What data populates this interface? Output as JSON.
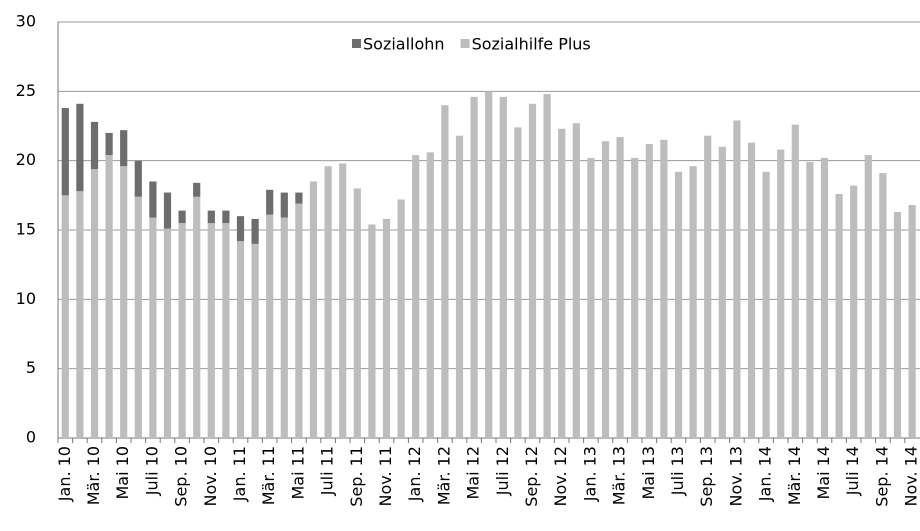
{
  "chart_data": {
    "type": "stacked_bar",
    "categories": [
      "Jan. 10",
      null,
      "Mär. 10",
      null,
      "Mai 10",
      null,
      "Juli 10",
      null,
      "Sep. 10",
      null,
      "Nov. 10",
      null,
      "Jan. 11",
      null,
      "Mär. 11",
      null,
      "Mai 11",
      null,
      "Juli 11",
      null,
      "Sep. 11",
      null,
      "Nov. 11",
      null,
      "Jan. 12",
      null,
      "Mär. 12",
      null,
      "Mai 12",
      null,
      "Juli 12",
      null,
      "Sep. 12",
      null,
      "Nov. 12",
      null,
      "Jan. 13",
      null,
      "Mär. 13",
      null,
      "Mai 13",
      null,
      "Juli 13",
      null,
      "Sep. 13",
      null,
      "Nov. 13",
      null,
      "Jan. 14",
      null,
      "Mär. 14",
      null,
      "Mai 14",
      null,
      "Juli 14",
      null,
      "Sep. 14",
      null,
      "Nov. 14"
    ],
    "series": [
      {
        "name": "Soziallohn",
        "color": "#6d6d6d",
        "values": [
          6.3,
          6.3,
          3.4,
          1.6,
          2.6,
          2.6,
          2.6,
          2.6,
          0.9,
          1.0,
          0.9,
          0.9,
          1.8,
          1.8,
          1.8,
          1.8,
          0.8,
          0,
          0,
          0,
          0,
          0,
          0,
          0,
          0,
          0,
          0,
          0,
          0,
          0,
          0,
          0,
          0,
          0,
          0,
          0,
          0,
          0,
          0,
          0,
          0,
          0,
          0,
          0,
          0,
          0,
          0,
          0,
          0,
          0,
          0,
          0,
          0,
          0,
          0,
          0,
          0,
          0,
          0
        ]
      },
      {
        "name": "Sozialhilfe Plus",
        "color": "#bdbdbd",
        "values": [
          17.5,
          17.8,
          19.4,
          20.4,
          19.6,
          17.4,
          15.9,
          15.1,
          15.5,
          17.4,
          15.5,
          15.5,
          14.2,
          14.0,
          16.1,
          15.9,
          16.9,
          18.5,
          19.6,
          19.8,
          18.0,
          15.4,
          15.8,
          17.2,
          20.4,
          20.6,
          24.0,
          21.8,
          24.6,
          25.0,
          24.6,
          22.4,
          24.1,
          24.8,
          22.3,
          22.7,
          20.2,
          21.4,
          21.7,
          20.2,
          21.2,
          21.5,
          19.2,
          19.6,
          21.8,
          21.0,
          22.9,
          21.3,
          19.2,
          20.8,
          22.6,
          19.9,
          20.2,
          17.6,
          18.2,
          20.4,
          19.1,
          16.3,
          16.8
        ]
      }
    ],
    "ylim": [
      0,
      30
    ],
    "yticks": [
      0,
      5,
      10,
      15,
      20,
      25,
      30
    ],
    "grid": true,
    "legend": "top"
  }
}
